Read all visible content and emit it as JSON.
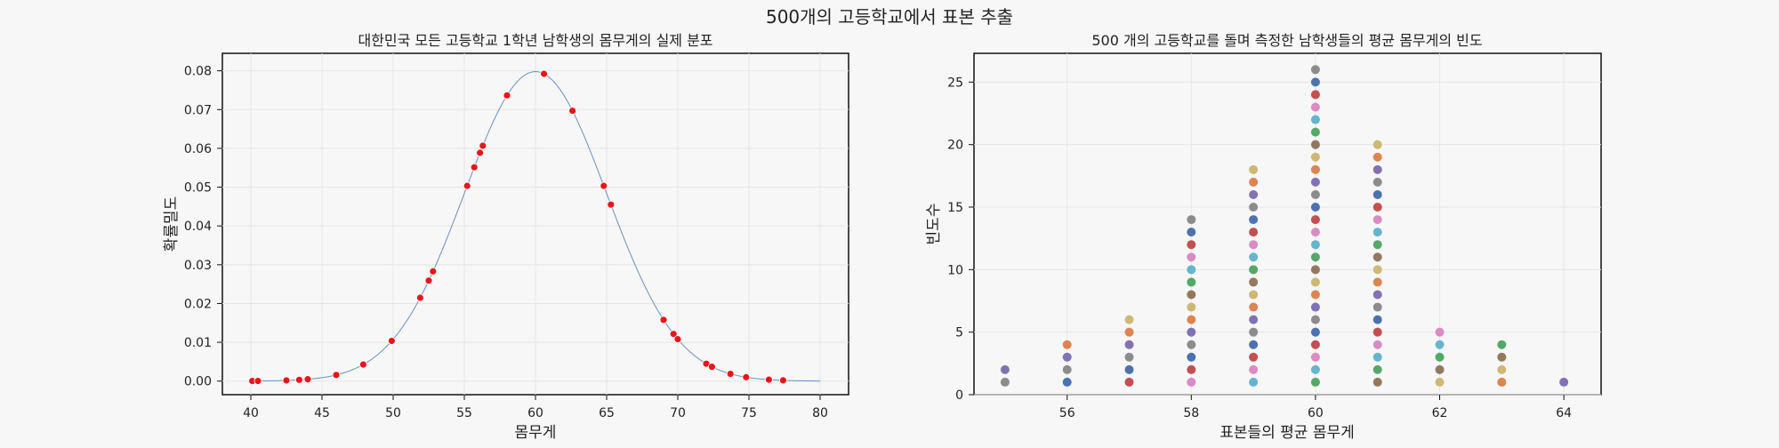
{
  "suptitle": "500개의 고등학교에서 표본 추출",
  "chart_data": [
    {
      "type": "line+scatter",
      "title": "대한민국 모든 고등학교 1학년 남학생의 몸무게의 실제 분포",
      "xlabel": "몸무게",
      "ylabel": "확률밀도",
      "xlim": [
        38,
        82
      ],
      "ylim": [
        -0.0035,
        0.0845
      ],
      "xticks": [
        40,
        45,
        50,
        55,
        60,
        65,
        70,
        75,
        80
      ],
      "yticks": [
        0.0,
        0.01,
        0.02,
        0.03,
        0.04,
        0.05,
        0.06,
        0.07,
        0.08
      ],
      "grid": true,
      "curve": {
        "mean": 60,
        "sd": 5,
        "x_range": [
          40,
          80
        ],
        "color": "#6a8fc0"
      },
      "points": {
        "color": "#e8161b",
        "x": [
          40.1,
          40.5,
          42.5,
          43.4,
          44.0,
          46.0,
          47.9,
          49.9,
          51.9,
          52.5,
          52.8,
          55.2,
          55.7,
          56.1,
          56.3,
          58.0,
          60.6,
          62.6,
          64.8,
          65.3,
          69.0,
          69.7,
          70.0,
          72.0,
          72.4,
          73.7,
          74.8,
          76.4,
          77.4
        ]
      }
    },
    {
      "type": "scatter",
      "title": "500 개의 고등학교를 돌며 측정한 남학생들의 평균 몸무게의 빈도",
      "xlabel": "표본들의 평균 몸무게",
      "ylabel": "빈도수",
      "xlim": [
        54.5,
        64.6
      ],
      "ylim": [
        0,
        27.3
      ],
      "xticks": [
        56,
        58,
        60,
        62,
        64
      ],
      "yticks": [
        0,
        5,
        10,
        15,
        20,
        25
      ],
      "grid": true,
      "categories": [
        55,
        56,
        57,
        58,
        59,
        60,
        61,
        62,
        63,
        64
      ],
      "counts": [
        2,
        4,
        6,
        14,
        18,
        26,
        20,
        5,
        4,
        1
      ],
      "palette": [
        "#4c72b0",
        "#dd8452",
        "#55a868",
        "#c44e52",
        "#8172b3",
        "#937860",
        "#da8bc3",
        "#8c8c8c",
        "#ccb974",
        "#64b5cd"
      ]
    }
  ]
}
